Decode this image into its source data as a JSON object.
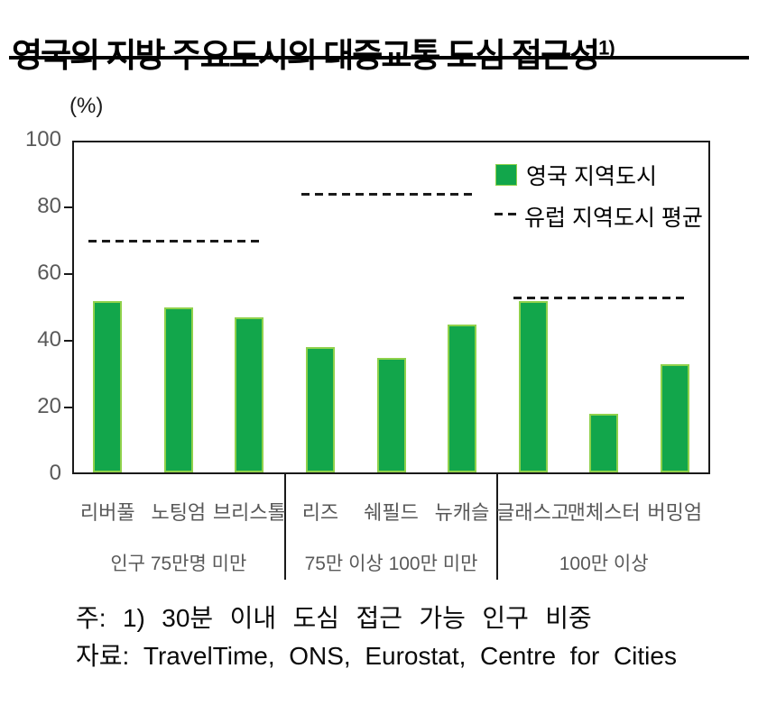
{
  "title": {
    "text": "영국의 지방 주요도시의 대중교통 도심 접근성",
    "superscript": "1)"
  },
  "y_axis": {
    "unit_label": "(%)",
    "ticks": [
      100,
      80,
      60,
      40,
      20,
      0
    ]
  },
  "legend": {
    "bar_series_label": "영국 지역도시",
    "dash_series_label": "유럽 지역도시 평균"
  },
  "chart_data": {
    "type": "bar",
    "title": "영국의 지방 주요도시의 대중교통 도심 접근성 1)",
    "ylabel": "(%)",
    "ylim": [
      0,
      100
    ],
    "grid": false,
    "legend_position": "top-right",
    "categories": [
      "리버풀",
      "노팅엄",
      "브리스톨",
      "리즈",
      "쉐필드",
      "뉴캐슬",
      "글래스고",
      "맨체스터",
      "버밍엄"
    ],
    "series": [
      {
        "name": "영국 지역도시",
        "values": [
          52,
          50,
          47,
          38,
          35,
          45,
          52,
          18,
          33
        ]
      }
    ],
    "reference_lines": [
      {
        "name": "유럽 지역도시 평균",
        "group_label": "인구 75만명 미만",
        "cities": [
          "리버풀",
          "노팅엄",
          "브리스톨"
        ],
        "value": 70
      },
      {
        "name": "유럽 지역도시 평균",
        "group_label": "75만 이상 100만 미만",
        "cities": [
          "리즈",
          "쉐필드",
          "뉴캐슬"
        ],
        "value": 84
      },
      {
        "name": "유럽 지역도시 평균",
        "group_label": "100만 이상",
        "cities": [
          "글래스고",
          "맨체스터",
          "버밍엄"
        ],
        "value": 53
      }
    ],
    "group_labels": [
      "인구 75만명 미만",
      "75만 이상 100만 미만",
      "100만 이상"
    ]
  },
  "colors": {
    "bar_fill": "#12A64B",
    "bar_border": "#8FD14B",
    "dash_line": "#1a1a1a",
    "axis": "#1a1a1a",
    "tick_label": "#595959"
  },
  "footnote": {
    "note": "주: 1) 30분 이내 도심 접근 가능 인구 비중",
    "source": "자료: TravelTime, ONS, Eurostat, Centre for Cities"
  }
}
